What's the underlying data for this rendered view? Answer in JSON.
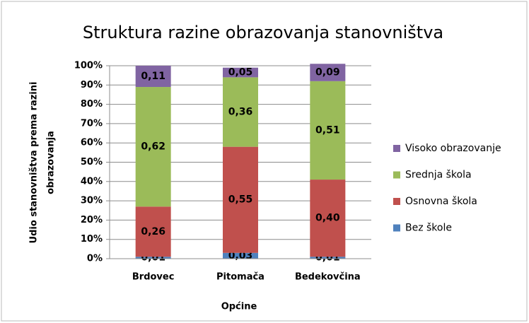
{
  "chart_data": {
    "type": "stacked_bar",
    "title": "Struktura razine obrazovanja stanovništva",
    "xlabel": "Općine",
    "ylabel": [
      "Udio stanovništva prema razini",
      "obrazovanja"
    ],
    "categories": [
      "Brdovec",
      "Pitomača",
      "Bedekovčina"
    ],
    "series": [
      {
        "name": "Bez škole",
        "color": "#4f81bd",
        "values": [
          1,
          3,
          1
        ],
        "value_labels": [
          "0,01",
          "0,03",
          "0,01"
        ]
      },
      {
        "name": "Osnovna škola",
        "color": "#c0504d",
        "values": [
          26,
          55,
          40
        ],
        "value_labels": [
          "0,26",
          "0,55",
          "0,40"
        ]
      },
      {
        "name": "Srednja škola",
        "color": "#9bbb59",
        "values": [
          62,
          36,
          51
        ],
        "value_labels": [
          "0,62",
          "0,36",
          "0,51"
        ]
      },
      {
        "name": "Visoko obrazovanje",
        "color": "#8064a2",
        "values": [
          11,
          5,
          9
        ],
        "value_labels": [
          "0,11",
          "0,05",
          "0,09"
        ]
      }
    ],
    "ylim": [
      0,
      100
    ],
    "yticks": [
      {
        "value": 0,
        "label": "0%"
      },
      {
        "value": 10,
        "label": "10%"
      },
      {
        "value": 20,
        "label": "20%"
      },
      {
        "value": 30,
        "label": "30%"
      },
      {
        "value": 40,
        "label": "40%"
      },
      {
        "value": 50,
        "label": "50%"
      },
      {
        "value": 60,
        "label": "60%"
      },
      {
        "value": 70,
        "label": "70%"
      },
      {
        "value": 80,
        "label": "80%"
      },
      {
        "value": 90,
        "label": "90%"
      },
      {
        "value": 100,
        "label": "100%"
      }
    ],
    "grid": true,
    "legend": "right"
  }
}
